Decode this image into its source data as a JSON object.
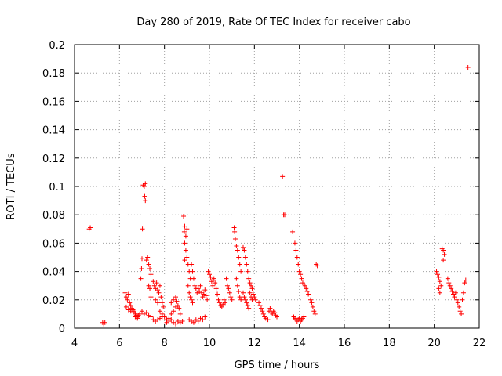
{
  "chart_data": {
    "type": "scatter",
    "title": "Day 280 of 2019, Rate Of TEC Index for receiver cabo",
    "xlabel": "GPS time / hours",
    "ylabel": "ROTI / TECUs",
    "xlim": [
      4,
      22
    ],
    "ylim": [
      0,
      0.2
    ],
    "xticks": [
      4,
      6,
      8,
      10,
      12,
      14,
      16,
      18,
      20,
      22
    ],
    "yticks": [
      0,
      0.02,
      0.04,
      0.06,
      0.08,
      0.1,
      0.12,
      0.14,
      0.16,
      0.18,
      0.2
    ],
    "xtick_labels": [
      "4",
      "6",
      "8",
      "10",
      "12",
      "14",
      "16",
      "18",
      "20",
      "22"
    ],
    "ytick_labels": [
      "0",
      "0.02",
      "0.04",
      "0.06",
      "0.08",
      "0.1",
      "0.12",
      "0.14",
      "0.16",
      "0.18",
      "0.2"
    ],
    "grid": true,
    "marker": "+",
    "color": "#ff0000",
    "series": [
      {
        "name": "ROTI",
        "points": [
          [
            4.65,
            0.07
          ],
          [
            4.7,
            0.071
          ],
          [
            5.25,
            0.004
          ],
          [
            5.3,
            0.003
          ],
          [
            5.35,
            0.004
          ],
          [
            6.25,
            0.025
          ],
          [
            6.3,
            0.022
          ],
          [
            6.35,
            0.02
          ],
          [
            6.4,
            0.024
          ],
          [
            6.45,
            0.018
          ],
          [
            6.5,
            0.016
          ],
          [
            6.55,
            0.014
          ],
          [
            6.6,
            0.013
          ],
          [
            6.65,
            0.012
          ],
          [
            6.7,
            0.01
          ],
          [
            6.75,
            0.009
          ],
          [
            6.8,
            0.008
          ],
          [
            6.85,
            0.009
          ],
          [
            6.9,
            0.01
          ],
          [
            6.3,
            0.015
          ],
          [
            6.4,
            0.013
          ],
          [
            6.5,
            0.012
          ],
          [
            6.6,
            0.011
          ],
          [
            6.7,
            0.008
          ],
          [
            6.8,
            0.007
          ],
          [
            6.95,
            0.035
          ],
          [
            6.98,
            0.042
          ],
          [
            7.0,
            0.049
          ],
          [
            7.02,
            0.07
          ],
          [
            7.05,
            0.101
          ],
          [
            7.1,
            0.1
          ],
          [
            7.15,
            0.102
          ],
          [
            7.12,
            0.093
          ],
          [
            7.15,
            0.09
          ],
          [
            7.2,
            0.048
          ],
          [
            7.25,
            0.05
          ],
          [
            7.3,
            0.045
          ],
          [
            7.35,
            0.042
          ],
          [
            7.4,
            0.038
          ],
          [
            7.3,
            0.03
          ],
          [
            7.35,
            0.028
          ],
          [
            7.4,
            0.022
          ],
          [
            7.0,
            0.012
          ],
          [
            7.1,
            0.01
          ],
          [
            7.2,
            0.011
          ],
          [
            7.3,
            0.009
          ],
          [
            7.4,
            0.008
          ],
          [
            7.5,
            0.006
          ],
          [
            7.6,
            0.005
          ],
          [
            7.7,
            0.006
          ],
          [
            7.8,
            0.007
          ],
          [
            7.9,
            0.008
          ],
          [
            7.5,
            0.033
          ],
          [
            7.55,
            0.03
          ],
          [
            7.6,
            0.028
          ],
          [
            7.65,
            0.032
          ],
          [
            7.7,
            0.027
          ],
          [
            7.75,
            0.025
          ],
          [
            7.8,
            0.03
          ],
          [
            7.85,
            0.022
          ],
          [
            7.9,
            0.018
          ],
          [
            7.95,
            0.015
          ],
          [
            7.6,
            0.02
          ],
          [
            7.7,
            0.018
          ],
          [
            7.8,
            0.012
          ],
          [
            7.9,
            0.01
          ],
          [
            8.0,
            0.008
          ],
          [
            8.1,
            0.006
          ],
          [
            8.2,
            0.007
          ],
          [
            8.3,
            0.01
          ],
          [
            8.4,
            0.012
          ],
          [
            8.5,
            0.015
          ],
          [
            8.3,
            0.018
          ],
          [
            8.4,
            0.02
          ],
          [
            8.5,
            0.022
          ],
          [
            8.55,
            0.019
          ],
          [
            8.6,
            0.016
          ],
          [
            8.65,
            0.014
          ],
          [
            8.7,
            0.01
          ],
          [
            8.1,
            0.004
          ],
          [
            8.2,
            0.005
          ],
          [
            8.3,
            0.006
          ],
          [
            8.4,
            0.004
          ],
          [
            8.5,
            0.003
          ],
          [
            8.6,
            0.005
          ],
          [
            8.7,
            0.004
          ],
          [
            8.8,
            0.005
          ],
          [
            8.85,
            0.079
          ],
          [
            8.9,
            0.072
          ],
          [
            8.88,
            0.068
          ],
          [
            8.95,
            0.065
          ],
          [
            9.0,
            0.07
          ],
          [
            8.9,
            0.06
          ],
          [
            8.95,
            0.055
          ],
          [
            9.0,
            0.05
          ],
          [
            8.9,
            0.048
          ],
          [
            9.05,
            0.045
          ],
          [
            9.1,
            0.04
          ],
          [
            9.15,
            0.035
          ],
          [
            9.05,
            0.03
          ],
          [
            9.1,
            0.025
          ],
          [
            9.15,
            0.022
          ],
          [
            9.2,
            0.02
          ],
          [
            9.25,
            0.018
          ],
          [
            9.1,
            0.006
          ],
          [
            9.2,
            0.005
          ],
          [
            9.3,
            0.004
          ],
          [
            9.4,
            0.006
          ],
          [
            9.5,
            0.005
          ],
          [
            9.6,
            0.007
          ],
          [
            9.7,
            0.006
          ],
          [
            9.8,
            0.008
          ],
          [
            9.2,
            0.045
          ],
          [
            9.25,
            0.04
          ],
          [
            9.3,
            0.035
          ],
          [
            9.35,
            0.03
          ],
          [
            9.4,
            0.028
          ],
          [
            9.45,
            0.025
          ],
          [
            9.5,
            0.028
          ],
          [
            9.55,
            0.026
          ],
          [
            9.6,
            0.03
          ],
          [
            9.65,
            0.025
          ],
          [
            9.7,
            0.022
          ],
          [
            9.75,
            0.024
          ],
          [
            9.8,
            0.027
          ],
          [
            9.85,
            0.023
          ],
          [
            9.9,
            0.02
          ],
          [
            9.95,
            0.04
          ],
          [
            10.0,
            0.038
          ],
          [
            10.05,
            0.036
          ],
          [
            10.1,
            0.033
          ],
          [
            10.15,
            0.03
          ],
          [
            10.2,
            0.035
          ],
          [
            10.25,
            0.032
          ],
          [
            10.3,
            0.028
          ],
          [
            10.35,
            0.024
          ],
          [
            10.4,
            0.02
          ],
          [
            10.45,
            0.018
          ],
          [
            10.5,
            0.016
          ],
          [
            10.55,
            0.015
          ],
          [
            10.6,
            0.017
          ],
          [
            10.65,
            0.02
          ],
          [
            10.7,
            0.018
          ],
          [
            10.75,
            0.035
          ],
          [
            10.8,
            0.03
          ],
          [
            10.85,
            0.028
          ],
          [
            10.9,
            0.025
          ],
          [
            10.95,
            0.022
          ],
          [
            11.0,
            0.02
          ],
          [
            11.1,
            0.071
          ],
          [
            11.12,
            0.068
          ],
          [
            11.15,
            0.063
          ],
          [
            11.2,
            0.058
          ],
          [
            11.25,
            0.055
          ],
          [
            11.3,
            0.05
          ],
          [
            11.35,
            0.045
          ],
          [
            11.4,
            0.04
          ],
          [
            11.2,
            0.035
          ],
          [
            11.25,
            0.03
          ],
          [
            11.3,
            0.026
          ],
          [
            11.35,
            0.022
          ],
          [
            11.4,
            0.02
          ],
          [
            11.5,
            0.057
          ],
          [
            11.55,
            0.055
          ],
          [
            11.6,
            0.05
          ],
          [
            11.65,
            0.045
          ],
          [
            11.7,
            0.04
          ],
          [
            11.75,
            0.035
          ],
          [
            11.8,
            0.032
          ],
          [
            11.85,
            0.03
          ],
          [
            11.9,
            0.028
          ],
          [
            11.5,
            0.025
          ],
          [
            11.55,
            0.022
          ],
          [
            11.6,
            0.02
          ],
          [
            11.65,
            0.018
          ],
          [
            11.7,
            0.016
          ],
          [
            11.75,
            0.014
          ],
          [
            11.8,
            0.025
          ],
          [
            11.85,
            0.022
          ],
          [
            11.9,
            0.02
          ],
          [
            11.95,
            0.024
          ],
          [
            12.0,
            0.022
          ],
          [
            12.05,
            0.02
          ],
          [
            12.2,
            0.018
          ],
          [
            12.25,
            0.016
          ],
          [
            12.3,
            0.014
          ],
          [
            12.35,
            0.012
          ],
          [
            12.4,
            0.01
          ],
          [
            12.45,
            0.008
          ],
          [
            12.5,
            0.007
          ],
          [
            12.6,
            0.006
          ],
          [
            12.65,
            0.012
          ],
          [
            12.7,
            0.014
          ],
          [
            12.75,
            0.011
          ],
          [
            12.8,
            0.01
          ],
          [
            12.85,
            0.012
          ],
          [
            12.9,
            0.011
          ],
          [
            12.95,
            0.009
          ],
          [
            13.0,
            0.008
          ],
          [
            13.25,
            0.107
          ],
          [
            13.3,
            0.08
          ],
          [
            13.35,
            0.08
          ],
          [
            13.7,
            0.068
          ],
          [
            13.8,
            0.06
          ],
          [
            13.85,
            0.055
          ],
          [
            13.9,
            0.05
          ],
          [
            13.95,
            0.045
          ],
          [
            14.0,
            0.04
          ],
          [
            14.05,
            0.038
          ],
          [
            14.1,
            0.035
          ],
          [
            14.15,
            0.032
          ],
          [
            13.75,
            0.008
          ],
          [
            13.8,
            0.007
          ],
          [
            13.85,
            0.006
          ],
          [
            13.9,
            0.005
          ],
          [
            13.95,
            0.006
          ],
          [
            14.0,
            0.007
          ],
          [
            14.05,
            0.005
          ],
          [
            14.1,
            0.006
          ],
          [
            14.15,
            0.007
          ],
          [
            14.2,
            0.008
          ],
          [
            14.25,
            0.03
          ],
          [
            14.3,
            0.028
          ],
          [
            14.35,
            0.026
          ],
          [
            14.4,
            0.024
          ],
          [
            14.5,
            0.02
          ],
          [
            14.55,
            0.018
          ],
          [
            14.6,
            0.015
          ],
          [
            14.65,
            0.012
          ],
          [
            14.7,
            0.01
          ],
          [
            14.75,
            0.045
          ],
          [
            14.8,
            0.044
          ],
          [
            20.1,
            0.04
          ],
          [
            20.15,
            0.038
          ],
          [
            20.2,
            0.036
          ],
          [
            20.25,
            0.033
          ],
          [
            20.3,
            0.03
          ],
          [
            20.2,
            0.028
          ],
          [
            20.25,
            0.025
          ],
          [
            20.35,
            0.056
          ],
          [
            20.4,
            0.055
          ],
          [
            20.45,
            0.052
          ],
          [
            20.4,
            0.048
          ],
          [
            20.6,
            0.035
          ],
          [
            20.65,
            0.032
          ],
          [
            20.7,
            0.03
          ],
          [
            20.75,
            0.028
          ],
          [
            20.8,
            0.026
          ],
          [
            20.85,
            0.024
          ],
          [
            20.9,
            0.022
          ],
          [
            20.95,
            0.025
          ],
          [
            21.0,
            0.02
          ],
          [
            21.05,
            0.018
          ],
          [
            21.1,
            0.015
          ],
          [
            21.15,
            0.012
          ],
          [
            21.2,
            0.01
          ],
          [
            21.25,
            0.02
          ],
          [
            21.3,
            0.025
          ],
          [
            21.35,
            0.032
          ],
          [
            21.4,
            0.034
          ],
          [
            21.5,
            0.184
          ]
        ]
      }
    ]
  }
}
